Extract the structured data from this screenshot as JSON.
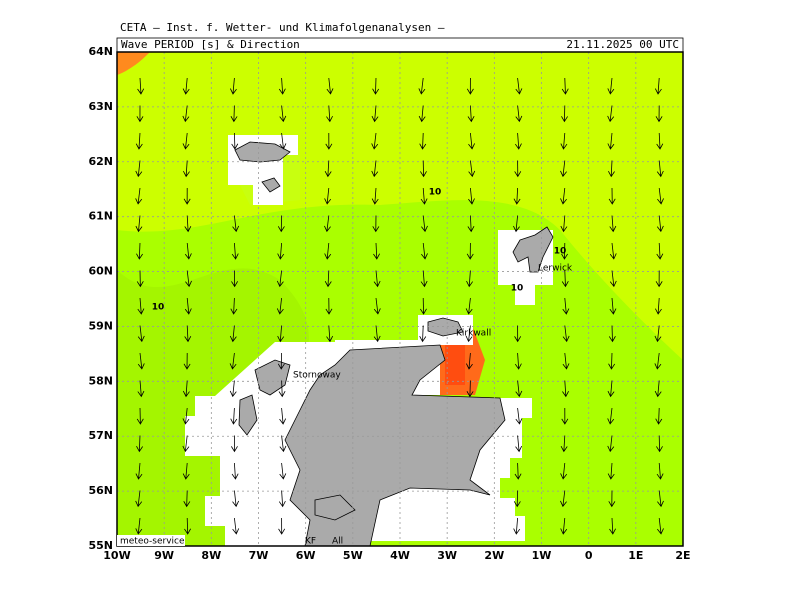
{
  "header": {
    "institute": "CETA — Inst. f. Wetter- und Klimafolgenanalysen —",
    "title": "Wave PERIOD [s] & Direction",
    "datetime": "21.11.2025 00 UTC"
  },
  "map": {
    "lat_labels": [
      "64N",
      "63N",
      "62N",
      "61N",
      "60N",
      "59N",
      "58N",
      "57N",
      "56N",
      "55N"
    ],
    "lon_labels": [
      "10W",
      "9W",
      "8W",
      "7W",
      "6W",
      "5W",
      "4W",
      "3W",
      "2W",
      "1W",
      "0",
      "1E",
      "2E"
    ],
    "places": [
      "Stornoway",
      "Kirkwall",
      "Lerwick"
    ],
    "contour_labels": [
      "10",
      "10",
      "10",
      "10"
    ]
  },
  "footer": {
    "source": "meteo-service",
    "labels": [
      "KF",
      "All"
    ]
  }
}
